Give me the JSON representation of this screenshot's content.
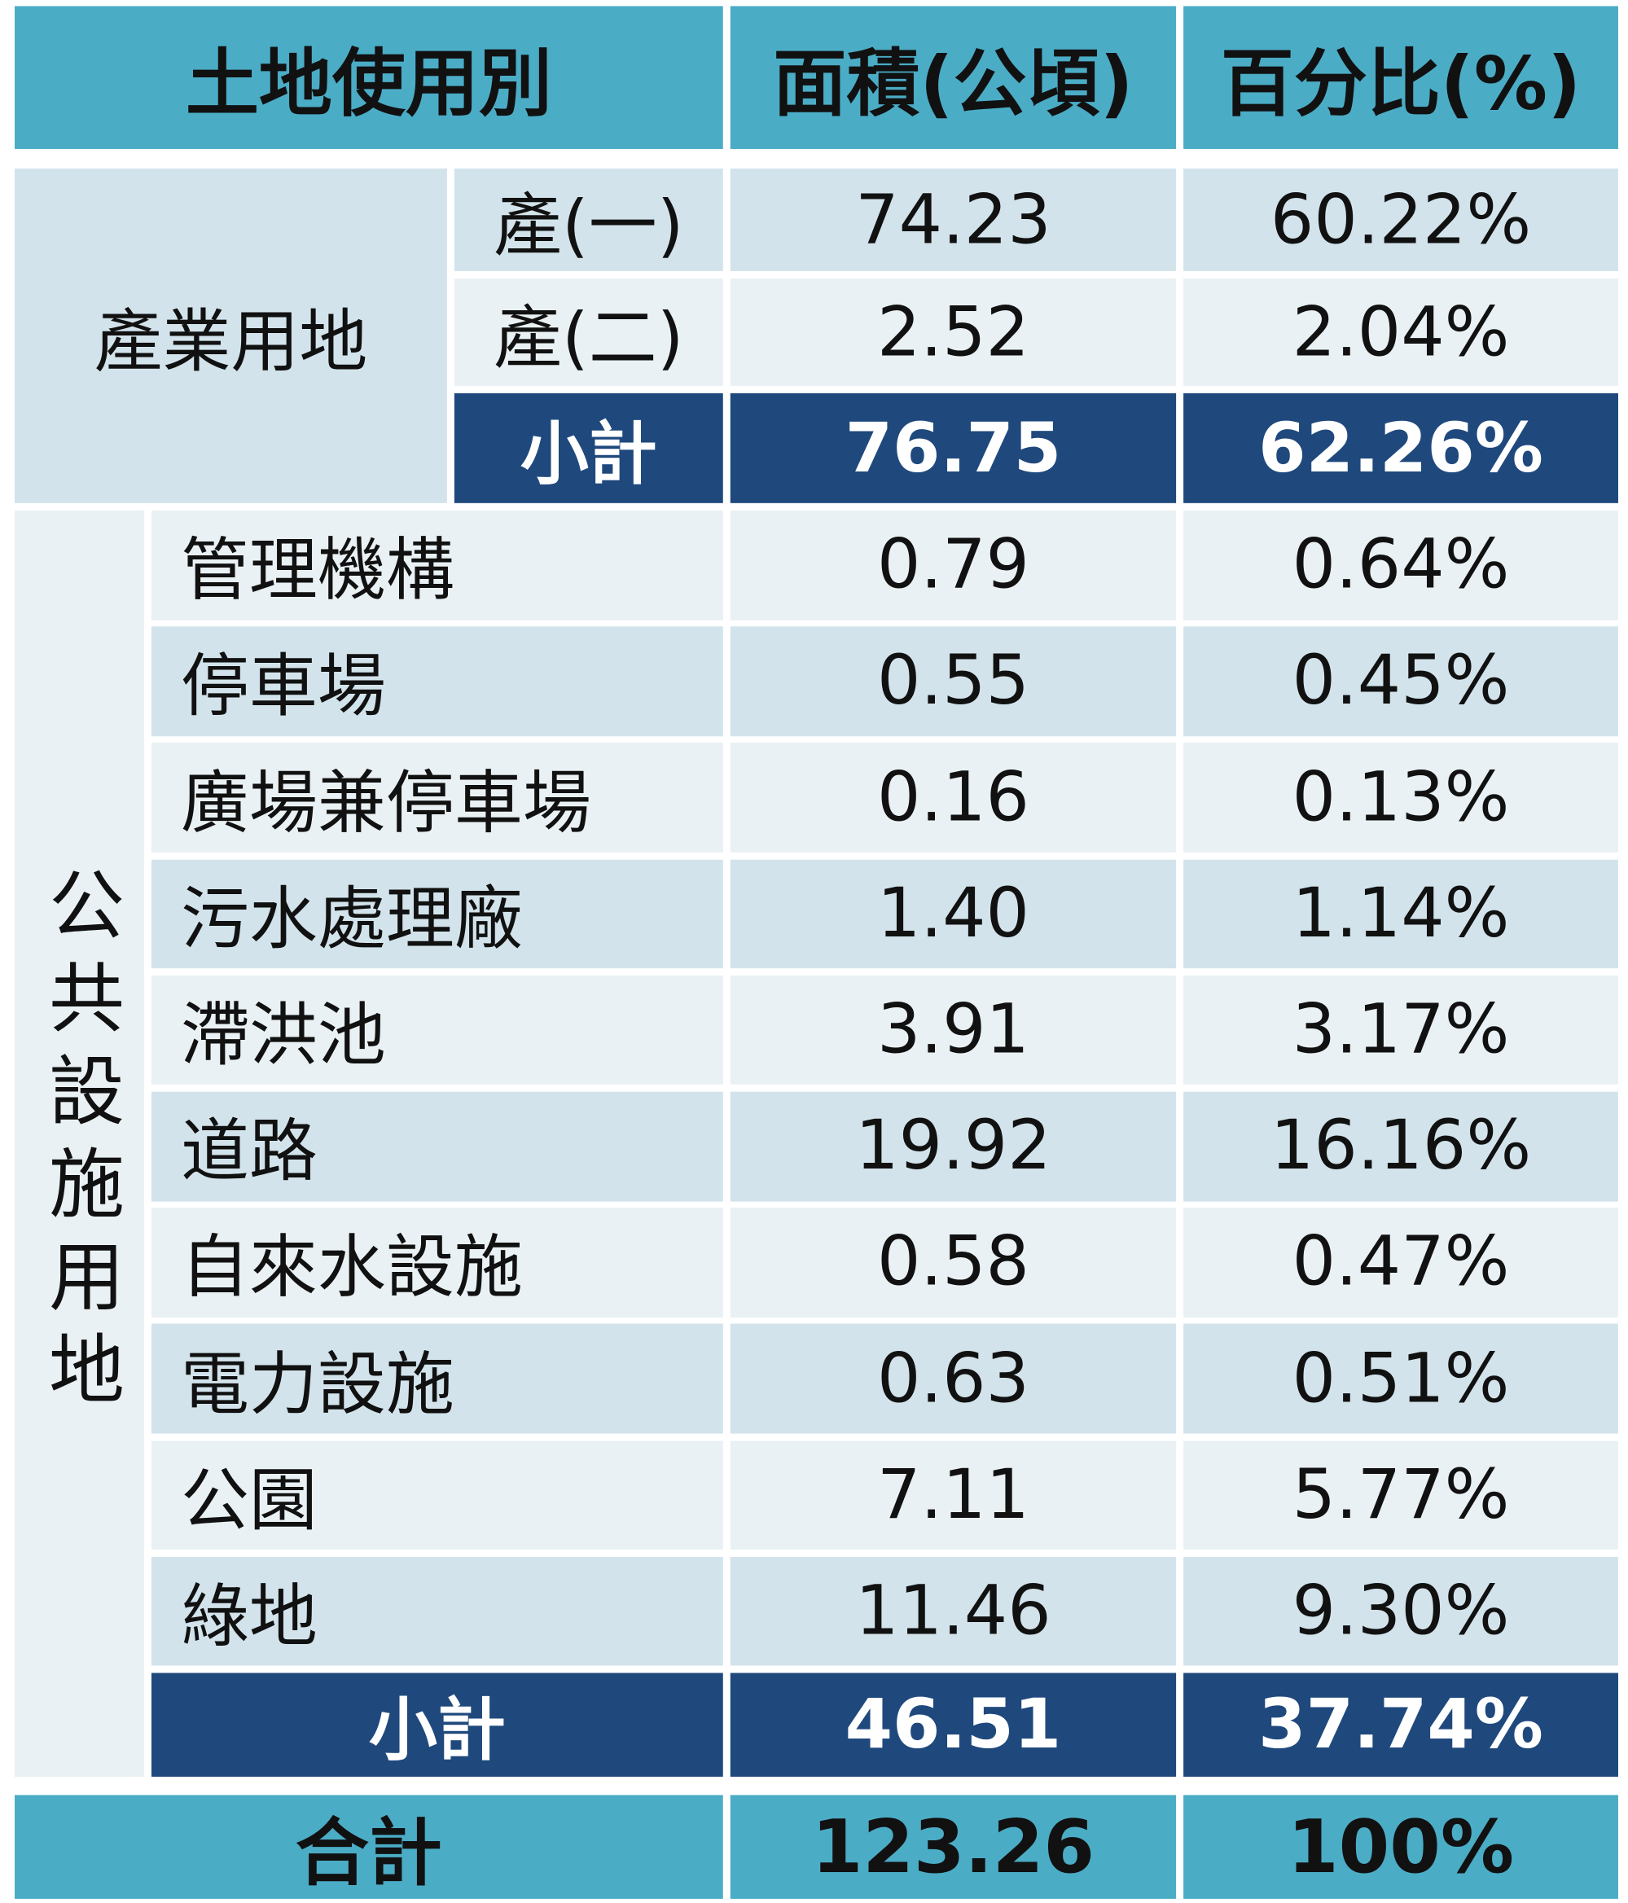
{
  "header": [
    "土地使用別",
    "面積(公頃)",
    "百分比(%)"
  ],
  "groups": [
    {
      "label": "產業用地",
      "rows": [
        {
          "name": "產(一)",
          "area": "74.23",
          "percent": "60.22%"
        },
        {
          "name": "產(二)",
          "area": "2.52",
          "percent": "2.04%"
        }
      ],
      "subtotal": {
        "label": "小計",
        "area": "76.75",
        "percent": "62.26%"
      }
    },
    {
      "label": "公共設施用地",
      "rows": [
        {
          "name": "管理機構",
          "area": "0.79",
          "percent": "0.64%"
        },
        {
          "name": "停車場",
          "area": "0.55",
          "percent": "0.45%"
        },
        {
          "name": "廣場兼停車場",
          "area": "0.16",
          "percent": "0.13%"
        },
        {
          "name": "污水處理廠",
          "area": "1.40",
          "percent": "1.14%"
        },
        {
          "name": "滯洪池",
          "area": "3.91",
          "percent": "3.17%"
        },
        {
          "name": "道路",
          "area": "19.92",
          "percent": "16.16%"
        },
        {
          "name": "自來水設施",
          "area": "0.58",
          "percent": "0.47%"
        },
        {
          "name": "電力設施",
          "area": "0.63",
          "percent": "0.51%"
        },
        {
          "name": "公園",
          "area": "7.11",
          "percent": "5.77%"
        },
        {
          "name": "綠地",
          "area": "11.46",
          "percent": "9.30%"
        }
      ],
      "subtotal": {
        "label": "小計",
        "area": "46.51",
        "percent": "37.74%"
      }
    }
  ],
  "total": {
    "label": "合計",
    "area": "123.26",
    "percent": "100%"
  }
}
